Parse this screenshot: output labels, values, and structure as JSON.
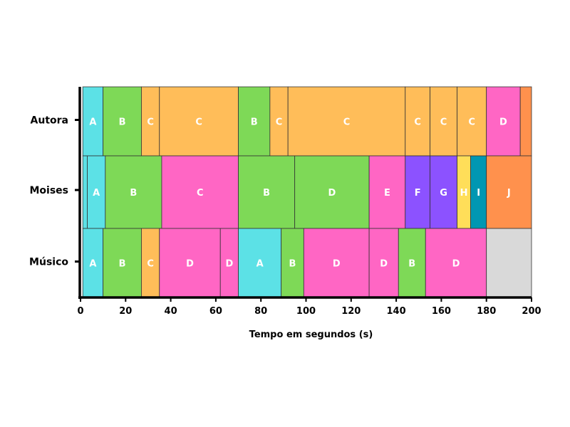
{
  "chart_data": {
    "type": "bar",
    "orientation": "horizontal-stacked-timeline",
    "xlabel": "Tempo em segundos (s)",
    "xlim": [
      0,
      200
    ],
    "x_ticks": [
      "0",
      "20",
      "40",
      "60",
      "80",
      "100",
      "120",
      "140",
      "160",
      "180",
      "200"
    ],
    "grid": false,
    "colors": {
      "A": "#5ce1e6",
      "B": "#7ed957",
      "C": "#ffbd59",
      "D": "#ff66c4",
      "E": "#ff66c4",
      "F": "#8c52ff",
      "G": "#8c52ff",
      "H": "#ffde59",
      "I": "#0097b2",
      "J": "#ff914d",
      "empty": "#d9d9d9"
    },
    "rows": [
      {
        "name": "Autora",
        "segments": [
          {
            "label": "A",
            "start": 1,
            "end": 10
          },
          {
            "label": "B",
            "start": 10,
            "end": 27
          },
          {
            "label": "C",
            "start": 27,
            "end": 35
          },
          {
            "label": "C",
            "start": 35,
            "end": 70
          },
          {
            "label": "B",
            "start": 70,
            "end": 84
          },
          {
            "label": "C",
            "start": 84,
            "end": 92
          },
          {
            "label": "C",
            "start": 92,
            "end": 144
          },
          {
            "label": "C",
            "start": 144,
            "end": 155
          },
          {
            "label": "C",
            "start": 155,
            "end": 167
          },
          {
            "label": "C",
            "start": 167,
            "end": 180
          },
          {
            "label": "D",
            "start": 180,
            "end": 195
          },
          {
            "label": "",
            "color_key": "J",
            "start": 195,
            "end": 200
          }
        ]
      },
      {
        "name": "Moises",
        "segments": [
          {
            "label": "",
            "color_key": "A",
            "start": 1,
            "end": 3
          },
          {
            "label": "A",
            "start": 3,
            "end": 11
          },
          {
            "label": "B",
            "start": 11,
            "end": 36
          },
          {
            "label": "C",
            "color_key": "D",
            "start": 36,
            "end": 70
          },
          {
            "label": "B",
            "start": 70,
            "end": 95
          },
          {
            "label": "D",
            "color_key": "B",
            "start": 95,
            "end": 128
          },
          {
            "label": "E",
            "start": 128,
            "end": 144
          },
          {
            "label": "F",
            "start": 144,
            "end": 155
          },
          {
            "label": "G",
            "start": 155,
            "end": 167
          },
          {
            "label": "H",
            "start": 167,
            "end": 173
          },
          {
            "label": "I",
            "start": 173,
            "end": 180
          },
          {
            "label": "J",
            "start": 180,
            "end": 200
          }
        ]
      },
      {
        "name": "Músico",
        "segments": [
          {
            "label": "A",
            "start": 1,
            "end": 10
          },
          {
            "label": "B",
            "start": 10,
            "end": 27
          },
          {
            "label": "C",
            "start": 27,
            "end": 35
          },
          {
            "label": "D",
            "start": 35,
            "end": 62
          },
          {
            "label": "D",
            "start": 62,
            "end": 70
          },
          {
            "label": "A",
            "start": 70,
            "end": 89
          },
          {
            "label": "B",
            "start": 89,
            "end": 99
          },
          {
            "label": "D",
            "start": 99,
            "end": 128
          },
          {
            "label": "D",
            "start": 128,
            "end": 141
          },
          {
            "label": "B",
            "start": 141,
            "end": 153
          },
          {
            "label": "D",
            "start": 153,
            "end": 180
          },
          {
            "label": "",
            "color_key": "empty",
            "start": 180,
            "end": 200
          }
        ]
      }
    ]
  }
}
